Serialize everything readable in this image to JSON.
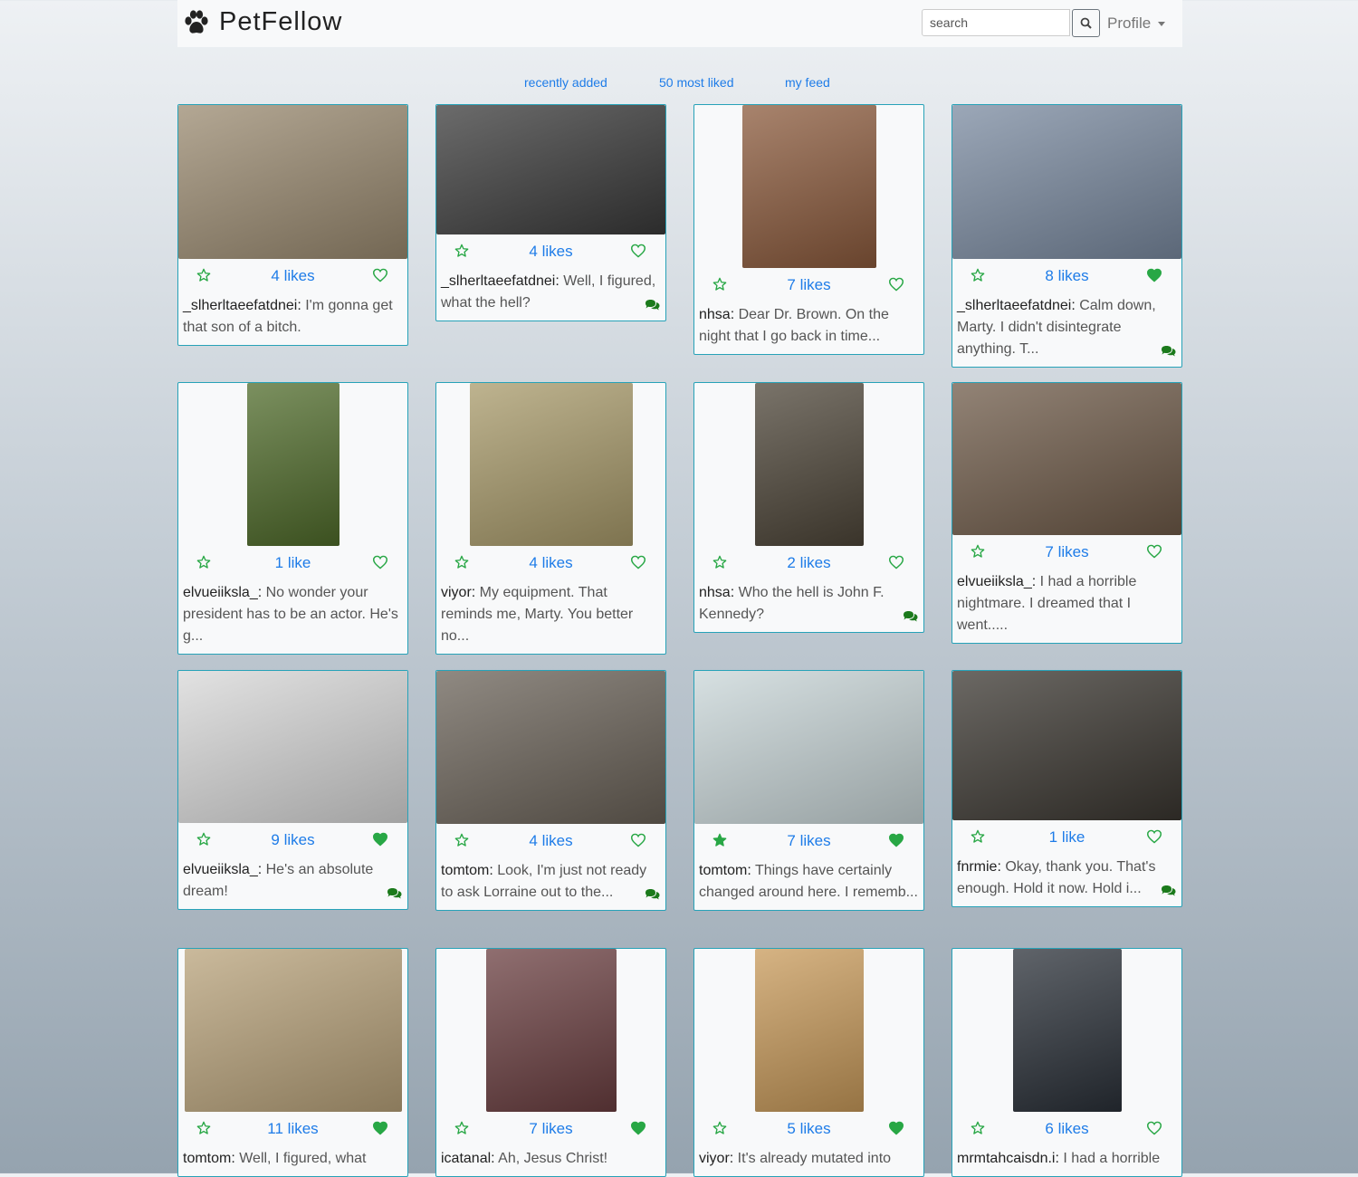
{
  "brand": {
    "name": "PetFellow"
  },
  "search": {
    "placeholder": "search"
  },
  "profile": {
    "label": "Profile"
  },
  "tabs": [
    "recently added",
    "50 most liked",
    "my feed"
  ],
  "colors": {
    "accent": "#1e7ce8",
    "card_border": "#27a2b8",
    "green": "#28a745",
    "comment": "#1b7a1b"
  },
  "posts": [
    {
      "likes": "4 likes",
      "user": "_slherltaeefatdnei",
      "text": "I'm gonna get that son of a bitch.",
      "fav": false,
      "liked": false,
      "comments": false,
      "img": "#9a8a70"
    },
    {
      "likes": "4 likes",
      "user": "_slherltaeefatdnei",
      "text": "Well, I figured, what the hell?",
      "fav": false,
      "liked": false,
      "comments": true,
      "img": "#3a3a3a"
    },
    {
      "likes": "7 likes",
      "user": "nhsa",
      "text": "Dear Dr. Brown. On the night that I go back in time...",
      "fav": false,
      "liked": false,
      "comments": false,
      "img": "#8b5a3c"
    },
    {
      "likes": "8 likes",
      "user": "_slherltaeefatdnei",
      "text": "Calm down, Marty. I didn't disintegrate anything. T...",
      "fav": false,
      "liked": true,
      "comments": true,
      "img": "#7a8aa0"
    },
    {
      "likes": "1 like",
      "user": "elvueiiksla_",
      "text": "No wonder your president has to be an actor. He's g...",
      "fav": false,
      "liked": false,
      "comments": false,
      "img": "#4f6b2a"
    },
    {
      "likes": "4 likes",
      "user": "viyor",
      "text": "My equipment. That reminds me, Marty. You better no...",
      "fav": false,
      "liked": false,
      "comments": false,
      "img": "#a89a6a"
    },
    {
      "likes": "2 likes",
      "user": "nhsa",
      "text": "Who the hell is John F. Kennedy?",
      "fav": false,
      "liked": false,
      "comments": true,
      "img": "#4d4538"
    },
    {
      "likes": "7 likes",
      "user": "elvueiiksla_",
      "text": "I had a horrible nightmare. I dreamed that I went.....",
      "fav": false,
      "liked": false,
      "comments": false,
      "img": "#6e5a48"
    },
    {
      "likes": "9 likes",
      "user": "elvueiiksla_",
      "text": "He's an absolute dream!",
      "fav": false,
      "liked": true,
      "comments": true,
      "img": "#d8d8d8"
    },
    {
      "likes": "4 likes",
      "user": "tomtom",
      "text": "Look, I'm just not ready to ask Lorraine out to the...",
      "fav": false,
      "liked": false,
      "comments": true,
      "img": "#6a6258"
    },
    {
      "likes": "7 likes",
      "user": "tomtom",
      "text": "Things have certainly changed around here. I rememb...",
      "fav": true,
      "liked": true,
      "comments": false,
      "img": "#c9d6d8"
    },
    {
      "likes": "1 like",
      "user": "fnrmie",
      "text": "Okay, thank you. That's enough. Hold it now. Hold i...",
      "fav": false,
      "liked": false,
      "comments": true,
      "img": "#3a3630"
    },
    {
      "likes": "11 likes",
      "user": "tomtom",
      "text": "Well, I figured, what",
      "fav": false,
      "liked": true,
      "comments": false,
      "img": "#b8a27a"
    },
    {
      "likes": "7 likes",
      "user": "icatanal",
      "text": "Ah, Jesus Christ!",
      "fav": false,
      "liked": true,
      "comments": false,
      "img": "#6a3e40"
    },
    {
      "likes": "5 likes",
      "user": "viyor",
      "text": "It's already mutated into",
      "fav": false,
      "liked": true,
      "comments": false,
      "img": "#c89a5a"
    },
    {
      "likes": "6 likes",
      "user": "mrmtahcaisdn.i",
      "text": "I had a horrible",
      "fav": false,
      "liked": false,
      "comments": false,
      "img": "#2a3038"
    }
  ]
}
